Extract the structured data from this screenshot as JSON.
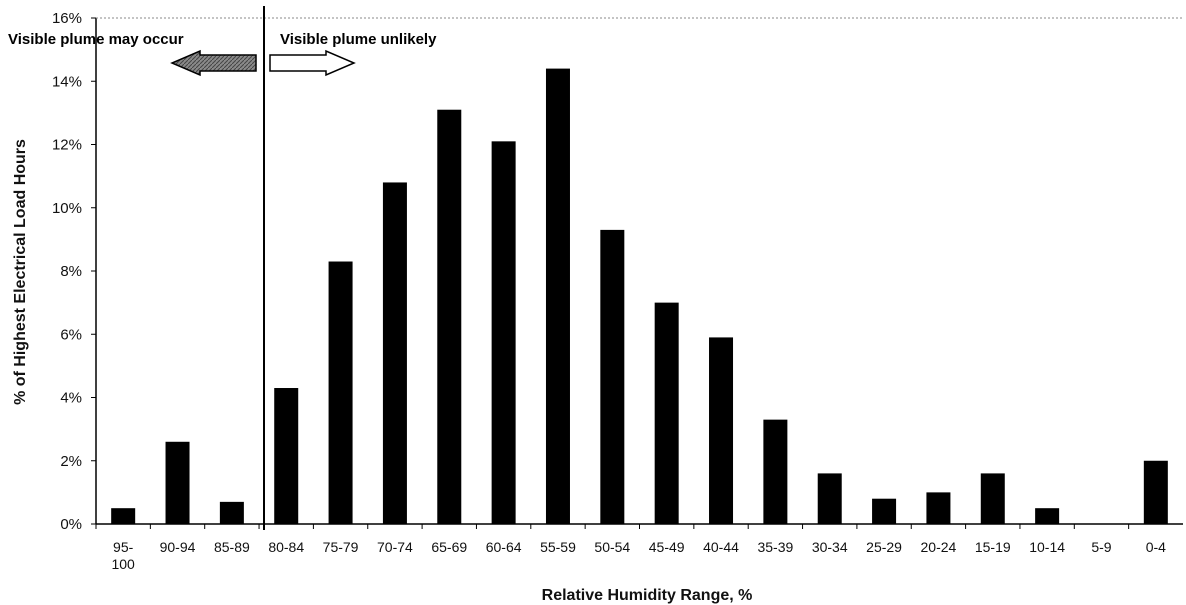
{
  "chart_data": {
    "type": "bar",
    "title": "",
    "xlabel": "Relative Humidity Range, %",
    "ylabel": "% of Highest Electrical Load Hours",
    "ylim": [
      0,
      16
    ],
    "yticks": [
      "0%",
      "2%",
      "4%",
      "6%",
      "8%",
      "10%",
      "12%",
      "14%",
      "16%"
    ],
    "categories": [
      "95-100",
      "90-94",
      "85-89",
      "80-84",
      "75-79",
      "70-74",
      "65-69",
      "60-64",
      "55-59",
      "50-54",
      "45-49",
      "40-44",
      "35-39",
      "30-34",
      "25-29",
      "20-24",
      "15-19",
      "10-14",
      "5-9",
      "0-4"
    ],
    "category_labels": [
      [
        "95-",
        "100"
      ],
      [
        "90-94"
      ],
      [
        "85-89"
      ],
      [
        "80-84"
      ],
      [
        "75-79"
      ],
      [
        "70-74"
      ],
      [
        "65-69"
      ],
      [
        "60-64"
      ],
      [
        "55-59"
      ],
      [
        "50-54"
      ],
      [
        "45-49"
      ],
      [
        "40-44"
      ],
      [
        "35-39"
      ],
      [
        "30-34"
      ],
      [
        "25-29"
      ],
      [
        "20-24"
      ],
      [
        "15-19"
      ],
      [
        "10-14"
      ],
      [
        "5-9"
      ],
      [
        "0-4"
      ]
    ],
    "values": [
      0.5,
      2.6,
      0.7,
      4.3,
      8.3,
      10.8,
      13.1,
      12.1,
      14.4,
      9.3,
      7.0,
      5.9,
      3.3,
      1.6,
      0.8,
      1.0,
      1.6,
      0.5,
      0.0,
      2.0
    ],
    "bar_color": "#000000",
    "grid": false,
    "annotations": {
      "left_text": "Visible plume may occur",
      "right_text": "Visible plume unlikely",
      "divider_between": [
        "85-89",
        "80-84"
      ]
    }
  }
}
